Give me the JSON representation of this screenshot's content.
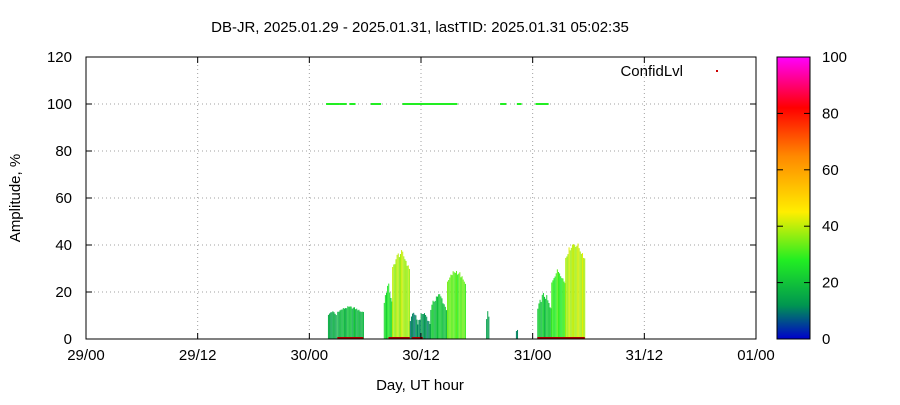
{
  "chart_data": {
    "type": "bar",
    "title": "DB-JR, 2025.01.29 - 2025.01.31, lastTID: 2025.01.31 05:02:35",
    "xlabel": "Day, UT hour",
    "ylabel": "Amplitude, %",
    "x_ticks": [
      "29/00",
      "29/12",
      "30/00",
      "30/12",
      "31/00",
      "31/12",
      "01/00"
    ],
    "x_range_hours": [
      0,
      72
    ],
    "ylim": [
      0,
      120
    ],
    "y_ticks": [
      0,
      20,
      40,
      60,
      80,
      100,
      120
    ],
    "grid": true,
    "legend": {
      "label": "ConfidLvl",
      "position": "top-right"
    },
    "colorbar": {
      "min": 0,
      "max": 100,
      "ticks": [
        0,
        20,
        40,
        60,
        80,
        100
      ]
    },
    "colors": [
      "#0000cc",
      "#00aa33",
      "#22ee22",
      "#ffee00",
      "#ff8800",
      "#ff0000",
      "#ff00ff"
    ],
    "series": [
      {
        "type": "bars",
        "segments": [
          {
            "start": 26.0,
            "end": 26.9,
            "amp_min": 9,
            "amp_max": 12,
            "confid": 15
          },
          {
            "start": 27.0,
            "end": 29.8,
            "amp_min": 10,
            "amp_max": 14,
            "confid": 18
          },
          {
            "start": 32.0,
            "end": 32.9,
            "amp_min": 10,
            "amp_max": 24,
            "confid": 25
          },
          {
            "start": 32.9,
            "end": 34.8,
            "amp_min": 25,
            "amp_max": 38,
            "confid": 38
          },
          {
            "start": 34.8,
            "end": 35.6,
            "amp_min": 5,
            "amp_max": 12,
            "confid": 10
          },
          {
            "start": 35.6,
            "end": 37.0,
            "amp_min": 3,
            "amp_max": 12,
            "confid": 12
          },
          {
            "start": 37.0,
            "end": 38.8,
            "amp_min": 8,
            "amp_max": 20,
            "confid": 20
          },
          {
            "start": 38.8,
            "end": 40.8,
            "amp_min": 20,
            "amp_max": 30,
            "confid": 32
          },
          {
            "start": 43.0,
            "end": 43.3,
            "amp_min": 6,
            "amp_max": 12,
            "confid": 12
          },
          {
            "start": 46.2,
            "end": 46.4,
            "amp_min": 3,
            "amp_max": 4,
            "confid": 10
          },
          {
            "start": 48.5,
            "end": 50.0,
            "amp_min": 8,
            "amp_max": 20,
            "confid": 20
          },
          {
            "start": 50.0,
            "end": 51.5,
            "amp_min": 20,
            "amp_max": 30,
            "confid": 30
          },
          {
            "start": 51.5,
            "end": 53.6,
            "amp_min": 30,
            "amp_max": 42,
            "confid": 40
          }
        ]
      },
      {
        "type": "confidence_points",
        "y": 100,
        "ranges": [
          [
            25.8,
            27.0
          ],
          [
            27.2,
            27.8
          ],
          [
            28.3,
            28.8
          ],
          [
            30.6,
            31.6
          ],
          [
            34.0,
            39.8
          ],
          [
            44.5,
            45.0
          ],
          [
            46.3,
            46.6
          ],
          [
            48.3,
            49.5
          ]
        ]
      },
      {
        "type": "baseline_marks",
        "y": 0,
        "ranges": [
          [
            27.0,
            29.8
          ],
          [
            32.5,
            34.8
          ],
          [
            35.0,
            36.2
          ],
          [
            48.5,
            53.6
          ]
        ]
      }
    ]
  }
}
